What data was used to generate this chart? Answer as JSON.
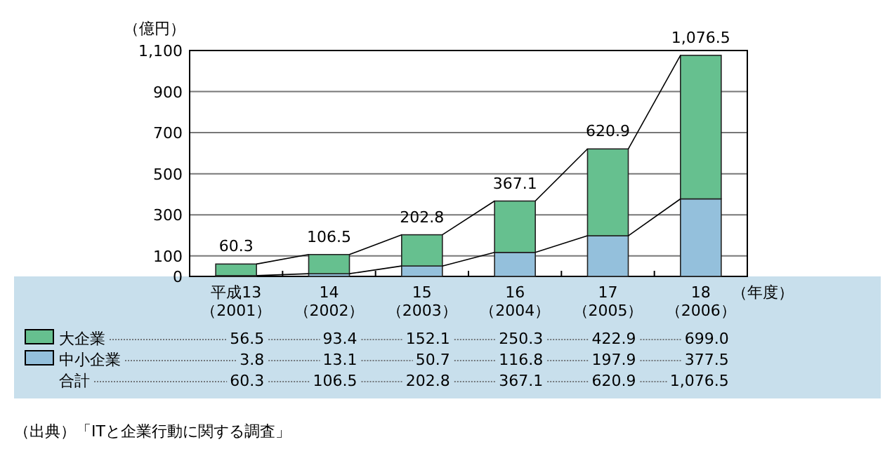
{
  "chart_data": {
    "type": "bar",
    "stacked": true,
    "ylabel": "（億円）",
    "xlabel": "（年度）",
    "categories": [
      "平成13\n（2001）",
      "14\n（2002）",
      "15\n（2003）",
      "16\n（2004）",
      "17\n（2005）",
      "18\n（2006）"
    ],
    "ylim": [
      0,
      1100
    ],
    "yticks": [
      0,
      100,
      300,
      500,
      700,
      900,
      {
        "value": 1100,
        "label": "1,100"
      }
    ],
    "grid": "y",
    "legend": "bottom left",
    "series": [
      {
        "name": "中小企業",
        "color": "#94c0dc",
        "values": [
          3.8,
          13.1,
          50.7,
          116.8,
          197.9,
          377.5
        ],
        "value_labels": [
          "3.8",
          "13.1",
          "50.7",
          "116.8",
          "197.9",
          "377.5"
        ]
      },
      {
        "name": "大企業",
        "color": "#66c08f",
        "values": [
          56.5,
          93.4,
          152.1,
          250.3,
          422.9,
          699.0
        ],
        "value_labels": [
          "56.5",
          "93.4",
          "152.1",
          "250.3",
          "422.9",
          "699.0"
        ]
      }
    ],
    "totals": [
      "60.3",
      "106.5",
      "202.8",
      "367.1",
      "620.9",
      "1,076.5"
    ],
    "annotations": [
      "合計",
      "（出典）「ITと企業行動に関する調査」"
    ]
  }
}
